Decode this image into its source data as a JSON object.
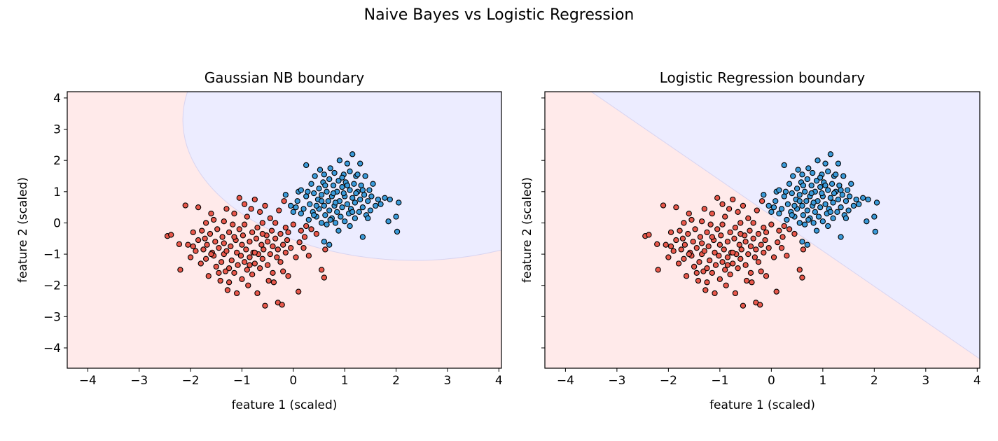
{
  "figure": {
    "title": "Naive Bayes vs Logistic Regression"
  },
  "colors": {
    "class0_point": "#e8574a",
    "class1_point": "#3a9ad9",
    "class0_region": "#ffeaea",
    "class1_region": "#ececff",
    "point_edge": "#000000",
    "axes": "#000000"
  },
  "chart_data": [
    {
      "type": "scatter",
      "title": "Gaussian NB boundary",
      "xlabel": "feature 1 (scaled)",
      "ylabel": "feature 2 (scaled)",
      "xlim": [
        -4.4,
        4.05
      ],
      "ylim": [
        -4.65,
        4.2
      ],
      "xticks": [
        -4,
        -3,
        -2,
        -1,
        0,
        1,
        2,
        3,
        4
      ],
      "yticks": [
        -4,
        -3,
        -2,
        -1,
        0,
        1,
        2,
        3,
        4
      ],
      "xtick_labels": [
        "−4",
        "−3",
        "−2",
        "−1",
        "0",
        "1",
        "2",
        "3",
        "4"
      ],
      "ytick_labels": [
        "−4",
        "−3",
        "−2",
        "−1",
        "0",
        "1",
        "2",
        "3",
        "4"
      ],
      "grid": false,
      "decision_region": {
        "kind": "circle",
        "class": 1,
        "center": [
          2.35,
          3.3
        ],
        "radius": 4.5
      }
    },
    {
      "type": "scatter",
      "title": "Logistic Regression boundary",
      "xlabel": "feature 1 (scaled)",
      "ylabel": "feature 2 (scaled)",
      "xlim": [
        -4.4,
        4.05
      ],
      "ylim": [
        -4.65,
        4.2
      ],
      "xticks": [
        -4,
        -3,
        -2,
        -1,
        0,
        1,
        2,
        3,
        4
      ],
      "yticks": [
        -4,
        -3,
        -2,
        -1,
        0,
        1,
        2,
        3,
        4
      ],
      "xtick_labels": [
        "−4",
        "−3",
        "−2",
        "−1",
        "0",
        "1",
        "2",
        "3",
        "4"
      ],
      "ytick_labels": [],
      "grid": false,
      "decision_region": {
        "kind": "line",
        "class": 1,
        "points": [
          [
            -3.5,
            4.2
          ],
          [
            4.05,
            -4.35
          ]
        ]
      }
    }
  ],
  "scatter_points": {
    "class0": [
      [
        -2.45,
        -0.42
      ],
      [
        -2.38,
        -0.38
      ],
      [
        -2.22,
        -0.68
      ],
      [
        -2.2,
        -1.5
      ],
      [
        -2.1,
        0.56
      ],
      [
        -2.05,
        -0.7
      ],
      [
        -2.0,
        -1.1
      ],
      [
        -1.95,
        -0.75
      ],
      [
        -1.9,
        -0.9
      ],
      [
        -1.85,
        -0.55
      ],
      [
        -1.85,
        0.5
      ],
      [
        -1.8,
        -1.3
      ],
      [
        -1.78,
        -0.25
      ],
      [
        -1.75,
        -0.85
      ],
      [
        -1.72,
        -0.5
      ],
      [
        -1.7,
        -1.15
      ],
      [
        -1.68,
        -0.7
      ],
      [
        -1.65,
        -1.7
      ],
      [
        -1.62,
        -0.35
      ],
      [
        -1.6,
        0.3
      ],
      [
        -1.58,
        -0.95
      ],
      [
        -1.55,
        -1.05
      ],
      [
        -1.52,
        -0.6
      ],
      [
        -1.5,
        -1.4
      ],
      [
        -1.48,
        -0.2
      ],
      [
        -1.45,
        -0.8
      ],
      [
        -1.42,
        -1.85
      ],
      [
        -1.4,
        -1.25
      ],
      [
        -1.38,
        -0.45
      ],
      [
        -1.35,
        0.05
      ],
      [
        -1.35,
        -1.0
      ],
      [
        -1.32,
        -1.55
      ],
      [
        -1.3,
        0.45
      ],
      [
        -1.3,
        -0.9
      ],
      [
        -1.28,
        -2.15
      ],
      [
        -1.25,
        -0.3
      ],
      [
        -1.25,
        -1.9
      ],
      [
        -1.22,
        -0.75
      ],
      [
        -1.2,
        -1.2
      ],
      [
        -1.18,
        -0.05
      ],
      [
        -1.15,
        0.3
      ],
      [
        -1.15,
        -1.6
      ],
      [
        -1.12,
        -0.55
      ],
      [
        -1.1,
        -0.95
      ],
      [
        -1.1,
        -2.25
      ],
      [
        -1.08,
        -1.35
      ],
      [
        -1.05,
        0.8
      ],
      [
        -1.05,
        -0.2
      ],
      [
        -1.02,
        -1.05
      ],
      [
        -1.0,
        -0.7
      ],
      [
        -1.0,
        -1.8
      ],
      [
        -0.98,
        -0.4
      ],
      [
        -0.95,
        0.6
      ],
      [
        -0.95,
        -1.25
      ],
      [
        -0.92,
        -0.85
      ],
      [
        -0.9,
        -1.5
      ],
      [
        -0.9,
        0.2
      ],
      [
        -0.88,
        -2.0
      ],
      [
        -0.85,
        -0.6
      ],
      [
        -0.85,
        -1.1
      ],
      [
        -0.82,
        0.45
      ],
      [
        -0.8,
        -0.3
      ],
      [
        -0.8,
        -1.65
      ],
      [
        -0.78,
        -0.95
      ],
      [
        -0.75,
        0.75
      ],
      [
        -0.75,
        -1.3
      ],
      [
        -0.72,
        -0.5
      ],
      [
        -0.7,
        -0.15
      ],
      [
        -0.7,
        -2.25
      ],
      [
        -0.68,
        -1.0
      ],
      [
        -0.65,
        0.35
      ],
      [
        -0.65,
        -1.45
      ],
      [
        -0.62,
        -0.7
      ],
      [
        -0.6,
        0.0
      ],
      [
        -0.6,
        -1.15
      ],
      [
        -0.58,
        -0.85
      ],
      [
        -0.55,
        0.55
      ],
      [
        -0.55,
        -2.65
      ],
      [
        -0.52,
        -0.4
      ],
      [
        -0.5,
        -1.35
      ],
      [
        -0.5,
        -0.6
      ],
      [
        -0.48,
        -1.85
      ],
      [
        -0.45,
        0.15
      ],
      [
        -0.45,
        -1.0
      ],
      [
        -0.42,
        -0.25
      ],
      [
        -0.4,
        -1.6
      ],
      [
        -0.4,
        -0.75
      ],
      [
        -0.38,
        -1.9
      ],
      [
        -0.35,
        0.0
      ],
      [
        -0.35,
        -0.5
      ],
      [
        -0.32,
        -1.1
      ],
      [
        -0.3,
        -0.85
      ],
      [
        -0.3,
        -2.55
      ],
      [
        -0.28,
        0.4
      ],
      [
        -0.25,
        -0.35
      ],
      [
        -0.25,
        -1.25
      ],
      [
        -0.22,
        -2.62
      ],
      [
        -0.2,
        -0.7
      ],
      [
        -0.2,
        -1.55
      ],
      [
        -0.18,
        0.7
      ],
      [
        -0.15,
        -0.15
      ],
      [
        -0.15,
        -0.95
      ],
      [
        -0.12,
        -0.55
      ],
      [
        -0.1,
        -1.7
      ],
      [
        -0.1,
        -0.3
      ],
      [
        -0.05,
        -0.8
      ],
      [
        0.0,
        -0.05
      ],
      [
        0.05,
        -1.1
      ],
      [
        0.1,
        -2.2
      ],
      [
        0.12,
        -0.62
      ],
      [
        0.15,
        -0.25
      ],
      [
        0.2,
        -0.8
      ],
      [
        0.22,
        -0.45
      ],
      [
        0.25,
        -0.1
      ],
      [
        0.3,
        -1.05
      ],
      [
        0.35,
        -0.2
      ],
      [
        0.45,
        -0.35
      ],
      [
        0.55,
        -1.5
      ],
      [
        0.6,
        -1.75
      ],
      [
        0.62,
        -0.85
      ],
      [
        -1.55,
        0.1
      ],
      [
        -1.7,
        0.0
      ],
      [
        -1.95,
        -0.3
      ],
      [
        -1.35,
        -0.65
      ],
      [
        -1.15,
        -0.45
      ],
      [
        -0.95,
        -0.05
      ],
      [
        -1.45,
        -1.6
      ],
      [
        -0.75,
        -0.95
      ],
      [
        -0.6,
        -0.35
      ],
      [
        -1.25,
        -1.45
      ],
      [
        -1.6,
        -1.0
      ],
      [
        -0.85,
        -1.35
      ]
    ],
    "class1": [
      [
        0.05,
        0.5
      ],
      [
        0.1,
        1.0
      ],
      [
        0.15,
        0.3
      ],
      [
        -0.15,
        0.9
      ],
      [
        -0.05,
        0.55
      ],
      [
        0.0,
        0.35
      ],
      [
        0.08,
        0.7
      ],
      [
        0.2,
        0.45
      ],
      [
        0.25,
        0.85
      ],
      [
        0.25,
        1.85
      ],
      [
        0.3,
        0.1
      ],
      [
        0.32,
        0.6
      ],
      [
        0.35,
        1.25
      ],
      [
        0.38,
        0.35
      ],
      [
        0.4,
        0.95
      ],
      [
        0.42,
        1.5
      ],
      [
        0.45,
        0.2
      ],
      [
        0.48,
        0.75
      ],
      [
        0.5,
        1.1
      ],
      [
        0.5,
        0.45
      ],
      [
        0.52,
        1.7
      ],
      [
        0.55,
        0.0
      ],
      [
        0.55,
        0.9
      ],
      [
        0.58,
        1.3
      ],
      [
        0.6,
        0.55
      ],
      [
        0.6,
        1.55
      ],
      [
        0.62,
        0.25
      ],
      [
        0.65,
        1.0
      ],
      [
        0.65,
        -0.05
      ],
      [
        0.68,
        0.7
      ],
      [
        0.7,
        1.4
      ],
      [
        0.7,
        0.4
      ],
      [
        0.72,
        1.75
      ],
      [
        0.75,
        0.85
      ],
      [
        0.75,
        0.15
      ],
      [
        0.78,
        1.2
      ],
      [
        0.8,
        0.55
      ],
      [
        0.8,
        1.6
      ],
      [
        0.82,
        0.0
      ],
      [
        0.85,
        1.0
      ],
      [
        0.85,
        0.35
      ],
      [
        0.88,
        1.35
      ],
      [
        0.9,
        0.7
      ],
      [
        0.9,
        2.0
      ],
      [
        0.92,
        0.2
      ],
      [
        0.95,
        1.15
      ],
      [
        0.95,
        0.5
      ],
      [
        0.98,
        1.55
      ],
      [
        1.0,
        0.85
      ],
      [
        1.0,
        0.05
      ],
      [
        1.02,
        1.3
      ],
      [
        1.05,
        1.9
      ],
      [
        1.05,
        0.6
      ],
      [
        1.08,
        0.3
      ],
      [
        1.1,
        1.05
      ],
      [
        1.1,
        1.65
      ],
      [
        1.12,
        0.45
      ],
      [
        1.15,
        0.8
      ],
      [
        1.15,
        2.2
      ],
      [
        1.18,
        1.25
      ],
      [
        1.2,
        0.15
      ],
      [
        1.2,
        0.65
      ],
      [
        1.22,
        1.5
      ],
      [
        1.25,
        1.0
      ],
      [
        1.28,
        0.35
      ],
      [
        1.3,
        0.75
      ],
      [
        1.3,
        1.9
      ],
      [
        1.32,
        1.2
      ],
      [
        1.35,
        0.5
      ],
      [
        1.38,
        0.9
      ],
      [
        1.4,
        1.5
      ],
      [
        1.42,
        0.25
      ],
      [
        1.45,
        0.7
      ],
      [
        1.48,
        1.05
      ],
      [
        1.5,
        0.4
      ],
      [
        1.52,
        0.85
      ],
      [
        1.55,
        1.25
      ],
      [
        1.6,
        0.55
      ],
      [
        1.65,
        0.75
      ],
      [
        1.7,
        0.6
      ],
      [
        1.78,
        0.8
      ],
      [
        1.85,
        0.05
      ],
      [
        1.88,
        0.75
      ],
      [
        2.0,
        0.2
      ],
      [
        2.02,
        -0.28
      ],
      [
        2.05,
        0.65
      ],
      [
        1.35,
        -0.45
      ],
      [
        1.1,
        -0.1
      ],
      [
        0.88,
        -0.25
      ],
      [
        0.6,
        -0.6
      ],
      [
        0.7,
        -0.7
      ],
      [
        0.45,
        0.55
      ],
      [
        0.28,
        1.0
      ],
      [
        0.15,
        1.05
      ],
      [
        0.62,
        1.2
      ],
      [
        0.78,
        0.95
      ],
      [
        0.95,
        1.45
      ],
      [
        1.25,
        1.55
      ],
      [
        1.05,
        1.2
      ],
      [
        0.82,
        0.65
      ],
      [
        1.35,
        1.05
      ],
      [
        1.15,
        0.35
      ],
      [
        0.55,
        0.7
      ],
      [
        0.4,
        0.25
      ],
      [
        0.72,
        0.1
      ],
      [
        1.45,
        0.15
      ],
      [
        0.98,
        0.95
      ],
      [
        1.22,
        0.95
      ]
    ]
  }
}
